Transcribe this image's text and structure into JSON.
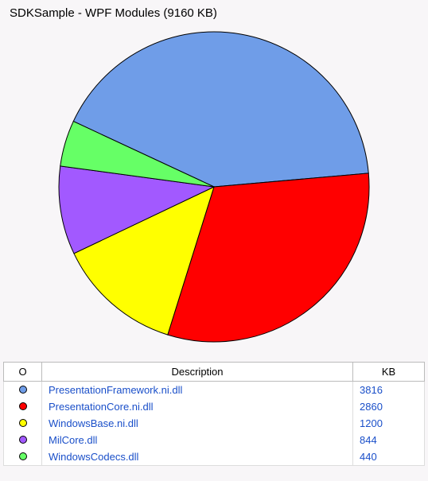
{
  "title": "SDKSample - WPF Modules (9160 KB)",
  "chart": {
    "type": "pie",
    "size": 400,
    "radius": 195,
    "background_color": "#f8f6f8",
    "stroke_color": "#000000",
    "stroke_width": 1,
    "start_angle_deg": -155,
    "slices": [
      {
        "label": "PresentationFramework.ni.dll",
        "value": 3816,
        "color": "#6f9de8"
      },
      {
        "label": "PresentationCore.ni.dll",
        "value": 2860,
        "color": "#ff0000"
      },
      {
        "label": "WindowsBase.ni.dll",
        "value": 1200,
        "color": "#ffff00"
      },
      {
        "label": "MilCore.dll",
        "value": 844,
        "color": "#a259ff"
      },
      {
        "label": "WindowsCodecs.dll",
        "value": 440,
        "color": "#66ff66"
      }
    ]
  },
  "table": {
    "headers": {
      "swatch": "O",
      "desc": "Description",
      "kb": "KB"
    },
    "header_fontsize": 13,
    "cell_color": "#1a4fc9",
    "border_color": "#bbbbbb"
  }
}
